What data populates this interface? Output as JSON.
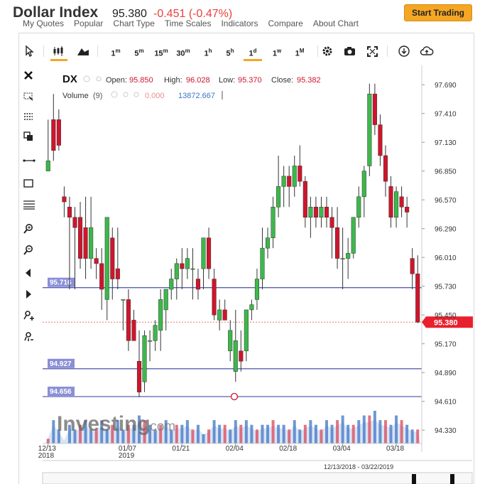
{
  "header": {
    "title": "Dollar Index",
    "price": "95.380",
    "change": "-0.451 (-0.47%)",
    "cta_label": "Start Trading"
  },
  "menu": [
    "My Quotes",
    "Popular",
    "Chart Type",
    "Time Scales",
    "Indicators",
    "Compare",
    "About Chart"
  ],
  "toolbar": {
    "timeframes": [
      "1m",
      "5m",
      "15m",
      "30m",
      "1h",
      "5h",
      "1d",
      "1w",
      "1M"
    ],
    "active_timeframe": "1d"
  },
  "legend": {
    "symbol": "DX",
    "open_label": "Open:",
    "open": "95.850",
    "high_label": "High:",
    "high": "96.028",
    "low_label": "Low:",
    "low": "95.370",
    "close_label": "Close:",
    "close": "95.382",
    "volume_label": "Volume",
    "volume_period": "(9)",
    "volume_ma": "0.000",
    "volume_value": "13872.667"
  },
  "watermark": "Investing",
  "watermark_suffix": ".com",
  "date_range": "12/13/2018 - 03/22/2019",
  "colors": {
    "up": "#3cb84a",
    "down": "#d0152c",
    "hline": "#5a5fb0",
    "accent": "#f5a623"
  },
  "chart_data": {
    "type": "candlestick",
    "y_ticks": [
      "97.690",
      "97.410",
      "97.130",
      "96.850",
      "96.570",
      "96.290",
      "96.010",
      "95.730",
      "95.450",
      "95.170",
      "94.890",
      "94.610",
      "94.330"
    ],
    "ylim": [
      94.2,
      97.85
    ],
    "x_labels": [
      {
        "label": "12/13",
        "sub": "2018",
        "idx": 0
      },
      {
        "label": "01/07",
        "sub": "2019",
        "idx": 15
      },
      {
        "label": "01/21",
        "sub": "",
        "idx": 25
      },
      {
        "label": "02/04",
        "sub": "",
        "idx": 35
      },
      {
        "label": "02/18",
        "sub": "",
        "idx": 45
      },
      {
        "label": "03/04",
        "sub": "",
        "idx": 55
      },
      {
        "label": "03/18",
        "sub": "",
        "idx": 65
      }
    ],
    "current_price": "95.380",
    "h_lines": [
      {
        "label": "95.716",
        "value": 95.716
      },
      {
        "label": "94.927",
        "value": 94.927
      },
      {
        "label": "94.656",
        "value": 94.656
      }
    ],
    "candles": [
      [
        96.85,
        97.35,
        96.85,
        96.95
      ],
      [
        97.35,
        97.6,
        96.95,
        97.05
      ],
      [
        97.35,
        97.45,
        97.05,
        97.1
      ],
      [
        96.6,
        96.7,
        96.4,
        96.55
      ],
      [
        96.5,
        96.6,
        95.7,
        96.4
      ],
      [
        96.4,
        96.5,
        95.7,
        96.3
      ],
      [
        96.4,
        96.55,
        95.9,
        96.0
      ],
      [
        96.3,
        96.6,
        95.8,
        96.0
      ],
      [
        96.0,
        96.6,
        95.9,
        96.3
      ],
      [
        96.0,
        96.1,
        95.8,
        95.95
      ],
      [
        95.95,
        96.1,
        95.5,
        95.7
      ],
      [
        95.6,
        96.4,
        95.4,
        96.4
      ],
      [
        96.2,
        96.3,
        95.6,
        95.8
      ],
      [
        95.9,
        96.3,
        95.7,
        95.8
      ],
      [
        95.6,
        95.6,
        95.3,
        95.6
      ],
      [
        95.6,
        95.7,
        95.1,
        95.2
      ],
      [
        95.4,
        95.5,
        95.2,
        95.2
      ],
      [
        95.0,
        95.3,
        94.65,
        94.7
      ],
      [
        94.8,
        95.3,
        94.7,
        95.25
      ],
      [
        95.2,
        95.3,
        95.0,
        95.2
      ],
      [
        95.2,
        95.4,
        95.1,
        95.35
      ],
      [
        95.3,
        95.7,
        95.1,
        95.6
      ],
      [
        95.5,
        95.7,
        95.3,
        95.7
      ],
      [
        95.7,
        95.9,
        95.6,
        95.8
      ],
      [
        95.8,
        96.0,
        95.6,
        95.95
      ],
      [
        95.95,
        96.1,
        95.7,
        95.9
      ],
      [
        95.9,
        96.1,
        95.8,
        96.0
      ],
      [
        95.9,
        96.1,
        95.6,
        95.9
      ],
      [
        95.8,
        95.9,
        95.6,
        95.7
      ],
      [
        95.9,
        96.2,
        95.7,
        96.2
      ],
      [
        96.2,
        96.3,
        95.8,
        95.9
      ],
      [
        95.8,
        95.9,
        95.4,
        95.45
      ],
      [
        95.4,
        95.6,
        95.3,
        95.5
      ],
      [
        95.5,
        95.6,
        95.4,
        95.4
      ],
      [
        95.1,
        95.4,
        95.0,
        95.3
      ],
      [
        94.9,
        95.5,
        94.8,
        95.2
      ],
      [
        95.1,
        95.3,
        94.9,
        95.0
      ],
      [
        95.1,
        95.5,
        95.0,
        95.5
      ],
      [
        95.5,
        95.6,
        95.4,
        95.55
      ],
      [
        95.6,
        95.9,
        95.5,
        95.8
      ],
      [
        95.8,
        96.3,
        95.7,
        96.1
      ],
      [
        96.1,
        96.3,
        96.0,
        96.2
      ],
      [
        96.2,
        96.6,
        96.1,
        96.5
      ],
      [
        96.5,
        97.0,
        96.4,
        96.7
      ],
      [
        96.7,
        96.9,
        96.5,
        96.8
      ],
      [
        96.8,
        96.9,
        96.5,
        96.7
      ],
      [
        96.7,
        97.0,
        96.6,
        96.9
      ],
      [
        96.9,
        97.1,
        96.7,
        96.75
      ],
      [
        96.75,
        96.8,
        96.3,
        96.4
      ],
      [
        96.4,
        96.6,
        96.2,
        96.5
      ],
      [
        96.5,
        96.6,
        96.3,
        96.4
      ],
      [
        96.4,
        96.6,
        96.3,
        96.5
      ],
      [
        96.5,
        96.6,
        96.3,
        96.4
      ],
      [
        96.4,
        96.5,
        96.0,
        96.3
      ],
      [
        96.3,
        96.5,
        95.9,
        96.0
      ],
      [
        96.0,
        96.3,
        95.7,
        96.0
      ],
      [
        96.0,
        96.2,
        95.8,
        96.05
      ],
      [
        96.05,
        96.4,
        96.0,
        96.4
      ],
      [
        96.4,
        96.7,
        96.3,
        96.6
      ],
      [
        96.6,
        96.9,
        96.4,
        96.85
      ],
      [
        96.9,
        97.7,
        96.8,
        97.6
      ],
      [
        97.6,
        97.7,
        97.2,
        97.3
      ],
      [
        97.3,
        97.4,
        96.9,
        97.0
      ],
      [
        97.0,
        97.1,
        96.6,
        96.75
      ],
      [
        96.7,
        96.8,
        96.3,
        96.4
      ],
      [
        96.4,
        96.7,
        96.3,
        96.65
      ],
      [
        96.6,
        96.7,
        96.4,
        96.5
      ],
      [
        96.5,
        96.6,
        96.3,
        96.45
      ],
      [
        96.0,
        96.1,
        95.7,
        95.85
      ],
      [
        95.85,
        96.03,
        95.37,
        95.38
      ]
    ],
    "volumes": [
      1,
      5,
      3,
      0,
      4,
      3,
      4,
      5,
      3,
      3,
      5,
      3,
      4,
      5,
      3,
      4,
      4,
      6,
      5,
      4,
      3,
      4,
      5,
      3,
      4,
      4,
      5,
      3,
      4,
      2,
      3,
      5,
      4,
      4,
      3,
      5,
      4,
      5,
      4,
      3,
      4,
      4,
      5,
      4,
      4,
      3,
      5,
      3,
      4,
      5,
      4,
      3,
      5,
      4,
      5,
      6,
      4,
      4,
      5,
      6,
      6,
      7,
      5,
      5,
      4,
      6,
      5,
      4,
      3,
      3
    ]
  }
}
